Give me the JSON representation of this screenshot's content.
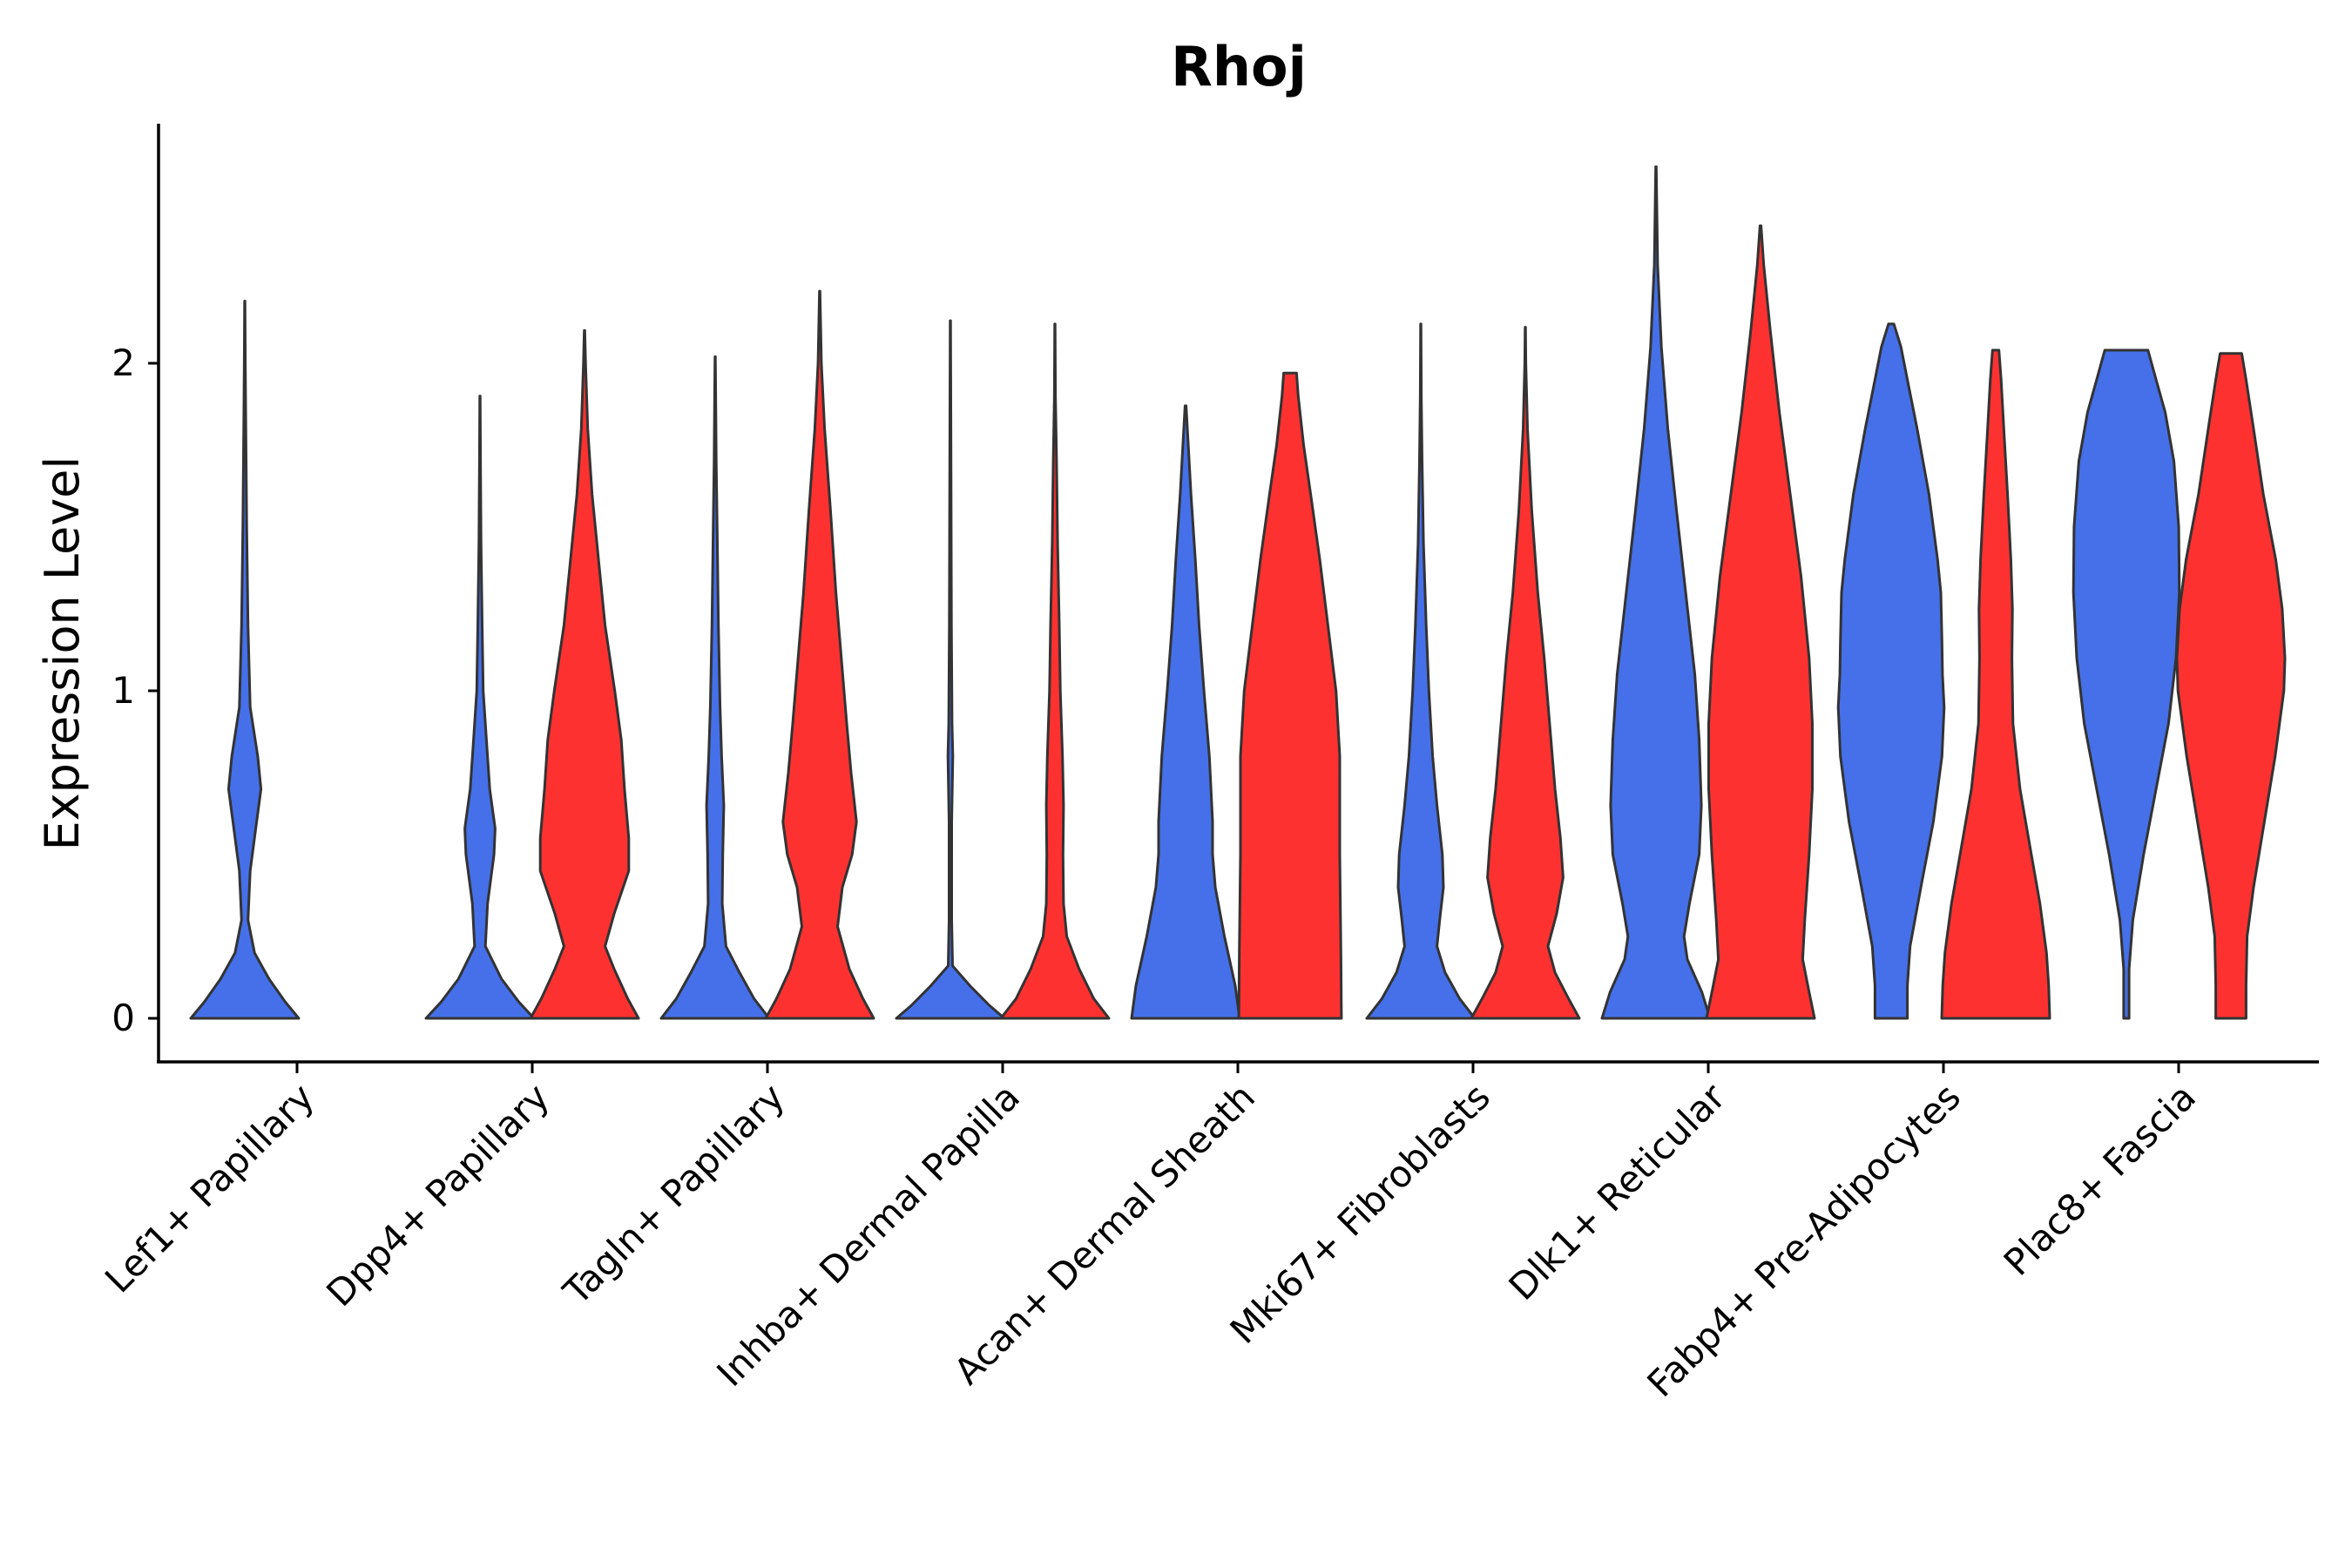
{
  "chart_data": {
    "type": "violin",
    "title": "Rhoj",
    "xlabel": "",
    "ylabel": "Expression Level",
    "ylim": [
      -0.13,
      2.75
    ],
    "yticks": [
      0,
      1,
      2
    ],
    "colors": {
      "blue": "#4570E9",
      "red": "#FE3131",
      "outline": "#333333",
      "axis": "#000000"
    },
    "categories": [
      "Lef1+ Papillary",
      "Dpp4+ Papillary",
      "Tagln+ Papillary",
      "Inhba+ Dermal Papilla",
      "Acan+ Dermal Sheath",
      "Mki67+ Fibroblasts",
      "Dlk1+ Reticular",
      "Fabp4+ Pre-Adipocytes",
      "Plac8+ Fascia"
    ],
    "violins": [
      {
        "category": 0,
        "group": "blue",
        "max": 2.19,
        "profile": [
          [
            0,
            1.0
          ],
          [
            0.05,
            0.75
          ],
          [
            0.12,
            0.45
          ],
          [
            0.2,
            0.18
          ],
          [
            0.3,
            0.06
          ],
          [
            0.45,
            0.1
          ],
          [
            0.6,
            0.22
          ],
          [
            0.7,
            0.3
          ],
          [
            0.8,
            0.24
          ],
          [
            0.95,
            0.1
          ],
          [
            1.2,
            0.06
          ],
          [
            1.5,
            0.035
          ],
          [
            1.8,
            0.02
          ],
          [
            2.0,
            0.01
          ],
          [
            2.19,
            0.003
          ]
        ]
      },
      {
        "category": 1,
        "group": "blue",
        "max": 1.9,
        "profile": [
          [
            0,
            1.0
          ],
          [
            0.05,
            0.72
          ],
          [
            0.12,
            0.4
          ],
          [
            0.22,
            0.1
          ],
          [
            0.35,
            0.14
          ],
          [
            0.5,
            0.26
          ],
          [
            0.58,
            0.28
          ],
          [
            0.7,
            0.18
          ],
          [
            0.85,
            0.12
          ],
          [
            1.0,
            0.06
          ],
          [
            1.2,
            0.04
          ],
          [
            1.45,
            0.02
          ],
          [
            1.7,
            0.01
          ],
          [
            1.9,
            0.003
          ]
        ]
      },
      {
        "category": 1,
        "group": "red",
        "max": 2.1,
        "profile": [
          [
            0,
            1.0
          ],
          [
            0.06,
            0.8
          ],
          [
            0.15,
            0.55
          ],
          [
            0.22,
            0.38
          ],
          [
            0.32,
            0.55
          ],
          [
            0.45,
            0.82
          ],
          [
            0.55,
            0.82
          ],
          [
            0.7,
            0.74
          ],
          [
            0.85,
            0.68
          ],
          [
            1.0,
            0.56
          ],
          [
            1.2,
            0.38
          ],
          [
            1.4,
            0.26
          ],
          [
            1.6,
            0.14
          ],
          [
            1.8,
            0.06
          ],
          [
            2.0,
            0.02
          ],
          [
            2.1,
            0.005
          ]
        ]
      },
      {
        "category": 2,
        "group": "blue",
        "max": 2.02,
        "profile": [
          [
            0,
            1.0
          ],
          [
            0.06,
            0.72
          ],
          [
            0.14,
            0.45
          ],
          [
            0.22,
            0.2
          ],
          [
            0.35,
            0.13
          ],
          [
            0.5,
            0.14
          ],
          [
            0.65,
            0.16
          ],
          [
            0.8,
            0.12
          ],
          [
            0.95,
            0.09
          ],
          [
            1.2,
            0.06
          ],
          [
            1.45,
            0.04
          ],
          [
            1.7,
            0.02
          ],
          [
            1.9,
            0.01
          ],
          [
            2.02,
            0.003
          ]
        ]
      },
      {
        "category": 2,
        "group": "red",
        "max": 2.22,
        "profile": [
          [
            0,
            1.0
          ],
          [
            0.06,
            0.8
          ],
          [
            0.15,
            0.55
          ],
          [
            0.28,
            0.33
          ],
          [
            0.4,
            0.42
          ],
          [
            0.5,
            0.6
          ],
          [
            0.6,
            0.68
          ],
          [
            0.75,
            0.58
          ],
          [
            0.9,
            0.5
          ],
          [
            1.1,
            0.4
          ],
          [
            1.3,
            0.3
          ],
          [
            1.55,
            0.2
          ],
          [
            1.8,
            0.09
          ],
          [
            2.0,
            0.03
          ],
          [
            2.22,
            0.005
          ]
        ]
      },
      {
        "category": 3,
        "group": "blue",
        "max": 2.13,
        "profile": [
          [
            0,
            1.0
          ],
          [
            0.04,
            0.72
          ],
          [
            0.1,
            0.36
          ],
          [
            0.16,
            0.04
          ],
          [
            0.3,
            0.025
          ],
          [
            0.6,
            0.025
          ],
          [
            0.8,
            0.045
          ],
          [
            0.9,
            0.03
          ],
          [
            1.2,
            0.02
          ],
          [
            1.5,
            0.015
          ],
          [
            1.8,
            0.01
          ],
          [
            2.13,
            0.003
          ]
        ]
      },
      {
        "category": 3,
        "group": "red",
        "max": 2.12,
        "profile": [
          [
            0,
            1.0
          ],
          [
            0.06,
            0.72
          ],
          [
            0.15,
            0.45
          ],
          [
            0.25,
            0.22
          ],
          [
            0.35,
            0.16
          ],
          [
            0.5,
            0.15
          ],
          [
            0.65,
            0.16
          ],
          [
            0.8,
            0.14
          ],
          [
            1.0,
            0.1
          ],
          [
            1.2,
            0.08
          ],
          [
            1.45,
            0.05
          ],
          [
            1.7,
            0.03
          ],
          [
            1.9,
            0.01
          ],
          [
            2.12,
            0.003
          ]
        ]
      },
      {
        "category": 4,
        "group": "blue",
        "max": 1.87,
        "profile": [
          [
            0,
            1.0
          ],
          [
            0.1,
            0.92
          ],
          [
            0.25,
            0.72
          ],
          [
            0.4,
            0.55
          ],
          [
            0.5,
            0.5
          ],
          [
            0.6,
            0.5
          ],
          [
            0.8,
            0.44
          ],
          [
            1.0,
            0.34
          ],
          [
            1.2,
            0.25
          ],
          [
            1.4,
            0.18
          ],
          [
            1.6,
            0.1
          ],
          [
            1.75,
            0.05
          ],
          [
            1.87,
            0.01
          ]
        ]
      },
      {
        "category": 4,
        "group": "red",
        "max": 1.97,
        "profile": [
          [
            0,
            0.95
          ],
          [
            0.2,
            0.94
          ],
          [
            0.5,
            0.92
          ],
          [
            0.8,
            0.92
          ],
          [
            1.0,
            0.85
          ],
          [
            1.2,
            0.7
          ],
          [
            1.4,
            0.55
          ],
          [
            1.6,
            0.38
          ],
          [
            1.75,
            0.25
          ],
          [
            1.9,
            0.15
          ],
          [
            1.97,
            0.12
          ]
        ]
      },
      {
        "category": 5,
        "group": "blue",
        "max": 2.12,
        "profile": [
          [
            0,
            1.0
          ],
          [
            0.06,
            0.72
          ],
          [
            0.14,
            0.45
          ],
          [
            0.22,
            0.3
          ],
          [
            0.3,
            0.35
          ],
          [
            0.4,
            0.42
          ],
          [
            0.5,
            0.4
          ],
          [
            0.65,
            0.3
          ],
          [
            0.8,
            0.22
          ],
          [
            1.0,
            0.15
          ],
          [
            1.2,
            0.1
          ],
          [
            1.45,
            0.05
          ],
          [
            1.7,
            0.025
          ],
          [
            1.9,
            0.01
          ],
          [
            2.12,
            0.003
          ]
        ]
      },
      {
        "category": 5,
        "group": "red",
        "max": 2.11,
        "profile": [
          [
            0,
            1.0
          ],
          [
            0.06,
            0.8
          ],
          [
            0.14,
            0.55
          ],
          [
            0.22,
            0.42
          ],
          [
            0.32,
            0.58
          ],
          [
            0.43,
            0.7
          ],
          [
            0.55,
            0.65
          ],
          [
            0.7,
            0.55
          ],
          [
            0.9,
            0.45
          ],
          [
            1.1,
            0.35
          ],
          [
            1.3,
            0.23
          ],
          [
            1.55,
            0.12
          ],
          [
            1.8,
            0.04
          ],
          [
            2.0,
            0.01
          ],
          [
            2.11,
            0.003
          ]
        ]
      },
      {
        "category": 6,
        "group": "blue",
        "max": 2.6,
        "profile": [
          [
            0,
            1.0
          ],
          [
            0.08,
            0.85
          ],
          [
            0.18,
            0.58
          ],
          [
            0.25,
            0.52
          ],
          [
            0.35,
            0.62
          ],
          [
            0.5,
            0.8
          ],
          [
            0.65,
            0.84
          ],
          [
            0.85,
            0.8
          ],
          [
            1.05,
            0.72
          ],
          [
            1.3,
            0.55
          ],
          [
            1.55,
            0.38
          ],
          [
            1.8,
            0.22
          ],
          [
            2.05,
            0.1
          ],
          [
            2.3,
            0.03
          ],
          [
            2.6,
            0.005
          ]
        ]
      },
      {
        "category": 6,
        "group": "red",
        "max": 2.42,
        "profile": [
          [
            0,
            1.0
          ],
          [
            0.08,
            0.9
          ],
          [
            0.18,
            0.78
          ],
          [
            0.3,
            0.82
          ],
          [
            0.5,
            0.9
          ],
          [
            0.7,
            0.96
          ],
          [
            0.9,
            0.96
          ],
          [
            1.1,
            0.9
          ],
          [
            1.35,
            0.75
          ],
          [
            1.6,
            0.55
          ],
          [
            1.85,
            0.35
          ],
          [
            2.1,
            0.18
          ],
          [
            2.3,
            0.06
          ],
          [
            2.42,
            0.01
          ]
        ]
      },
      {
        "category": 7,
        "group": "blue",
        "max": 2.12,
        "profile": [
          [
            0,
            0.3
          ],
          [
            0.1,
            0.3
          ],
          [
            0.22,
            0.35
          ],
          [
            0.4,
            0.55
          ],
          [
            0.6,
            0.78
          ],
          [
            0.8,
            0.94
          ],
          [
            0.95,
            0.98
          ],
          [
            1.05,
            0.95
          ],
          [
            1.15,
            0.94
          ],
          [
            1.3,
            0.92
          ],
          [
            1.4,
            0.86
          ],
          [
            1.6,
            0.7
          ],
          [
            1.8,
            0.48
          ],
          [
            1.95,
            0.3
          ],
          [
            2.05,
            0.18
          ],
          [
            2.12,
            0.05
          ]
        ]
      },
      {
        "category": 7,
        "group": "red",
        "max": 2.04,
        "profile": [
          [
            0,
            1.0
          ],
          [
            0.1,
            0.98
          ],
          [
            0.2,
            0.94
          ],
          [
            0.35,
            0.82
          ],
          [
            0.5,
            0.66
          ],
          [
            0.7,
            0.45
          ],
          [
            0.9,
            0.32
          ],
          [
            1.1,
            0.3
          ],
          [
            1.25,
            0.31
          ],
          [
            1.4,
            0.28
          ],
          [
            1.6,
            0.22
          ],
          [
            1.8,
            0.15
          ],
          [
            1.95,
            0.1
          ],
          [
            2.04,
            0.06
          ]
        ]
      },
      {
        "category": 8,
        "group": "blue",
        "max": 2.04,
        "profile": [
          [
            0,
            0.05
          ],
          [
            0.15,
            0.05
          ],
          [
            0.3,
            0.12
          ],
          [
            0.5,
            0.32
          ],
          [
            0.7,
            0.55
          ],
          [
            0.9,
            0.78
          ],
          [
            1.1,
            0.92
          ],
          [
            1.3,
            0.98
          ],
          [
            1.5,
            0.97
          ],
          [
            1.7,
            0.88
          ],
          [
            1.85,
            0.72
          ],
          [
            1.95,
            0.55
          ],
          [
            2.04,
            0.4
          ]
        ]
      },
      {
        "category": 8,
        "group": "red",
        "max": 2.03,
        "profile": [
          [
            0,
            0.28
          ],
          [
            0.1,
            0.28
          ],
          [
            0.25,
            0.3
          ],
          [
            0.4,
            0.42
          ],
          [
            0.6,
            0.62
          ],
          [
            0.8,
            0.82
          ],
          [
            1.0,
            0.98
          ],
          [
            1.1,
            1.0
          ],
          [
            1.25,
            0.95
          ],
          [
            1.4,
            0.83
          ],
          [
            1.6,
            0.6
          ],
          [
            1.8,
            0.42
          ],
          [
            1.95,
            0.28
          ],
          [
            2.03,
            0.2
          ]
        ]
      }
    ]
  }
}
